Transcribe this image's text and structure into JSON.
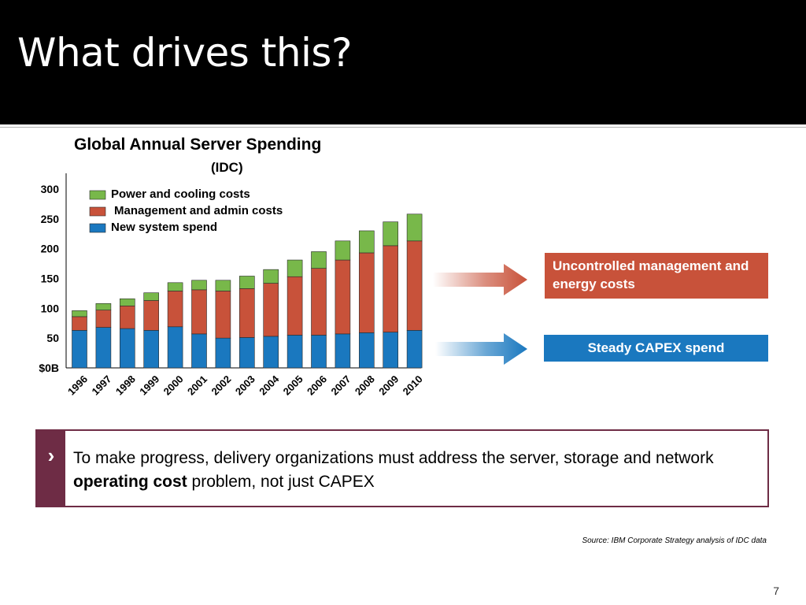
{
  "slide": {
    "title": "What drives this?",
    "page_number": "7",
    "source": "Source: IBM Corporate Strategy analysis of IDC data"
  },
  "callouts": {
    "management": "Uncontrolled management and energy costs",
    "capex": "Steady CAPEX spend"
  },
  "message": {
    "chevron": "›",
    "text_before": "To make progress, delivery organizations must address the server, storage and network ",
    "text_bold": "operating cost",
    "text_after": " problem, not just CAPEX"
  },
  "colors": {
    "new_system": "#1a78bf",
    "management": "#c8523a",
    "power": "#78b84a",
    "message_accent": "#6e2c45"
  },
  "chart_data": {
    "type": "bar",
    "stacked": true,
    "title": "Global Annual Server Spending",
    "subtitle": "(IDC)",
    "xlabel": "",
    "ylabel": "",
    "ylim": [
      0,
      300
    ],
    "yticks": [
      {
        "value": 0,
        "label": "$0B"
      },
      {
        "value": 50,
        "label": "50"
      },
      {
        "value": 100,
        "label": "100"
      },
      {
        "value": 150,
        "label": "150"
      },
      {
        "value": 200,
        "label": "200"
      },
      {
        "value": 250,
        "label": "250"
      },
      {
        "value": 300,
        "label": "300"
      }
    ],
    "categories": [
      "1996",
      "1997",
      "1998",
      "1999",
      "2000",
      "2001",
      "2002",
      "2003",
      "2004",
      "2005",
      "2006",
      "2007",
      "2008",
      "2009",
      "2010"
    ],
    "legend_position": "top-left",
    "legend_order": [
      2,
      1,
      0
    ],
    "series": [
      {
        "name": "New system spend",
        "color": "#1a78bf",
        "values": [
          63,
          68,
          66,
          63,
          69,
          57,
          50,
          51,
          53,
          55,
          55,
          57,
          59,
          60,
          63
        ]
      },
      {
        "name": "Management and admin costs",
        "color": "#c8523a",
        "values": [
          23,
          29,
          38,
          50,
          60,
          74,
          79,
          82,
          89,
          98,
          112,
          124,
          134,
          145,
          150
        ]
      },
      {
        "name": "Power and cooling costs",
        "color": "#78b84a",
        "values": [
          10,
          11,
          12,
          13,
          14,
          16,
          18,
          21,
          23,
          28,
          28,
          32,
          37,
          40,
          45
        ]
      }
    ]
  }
}
